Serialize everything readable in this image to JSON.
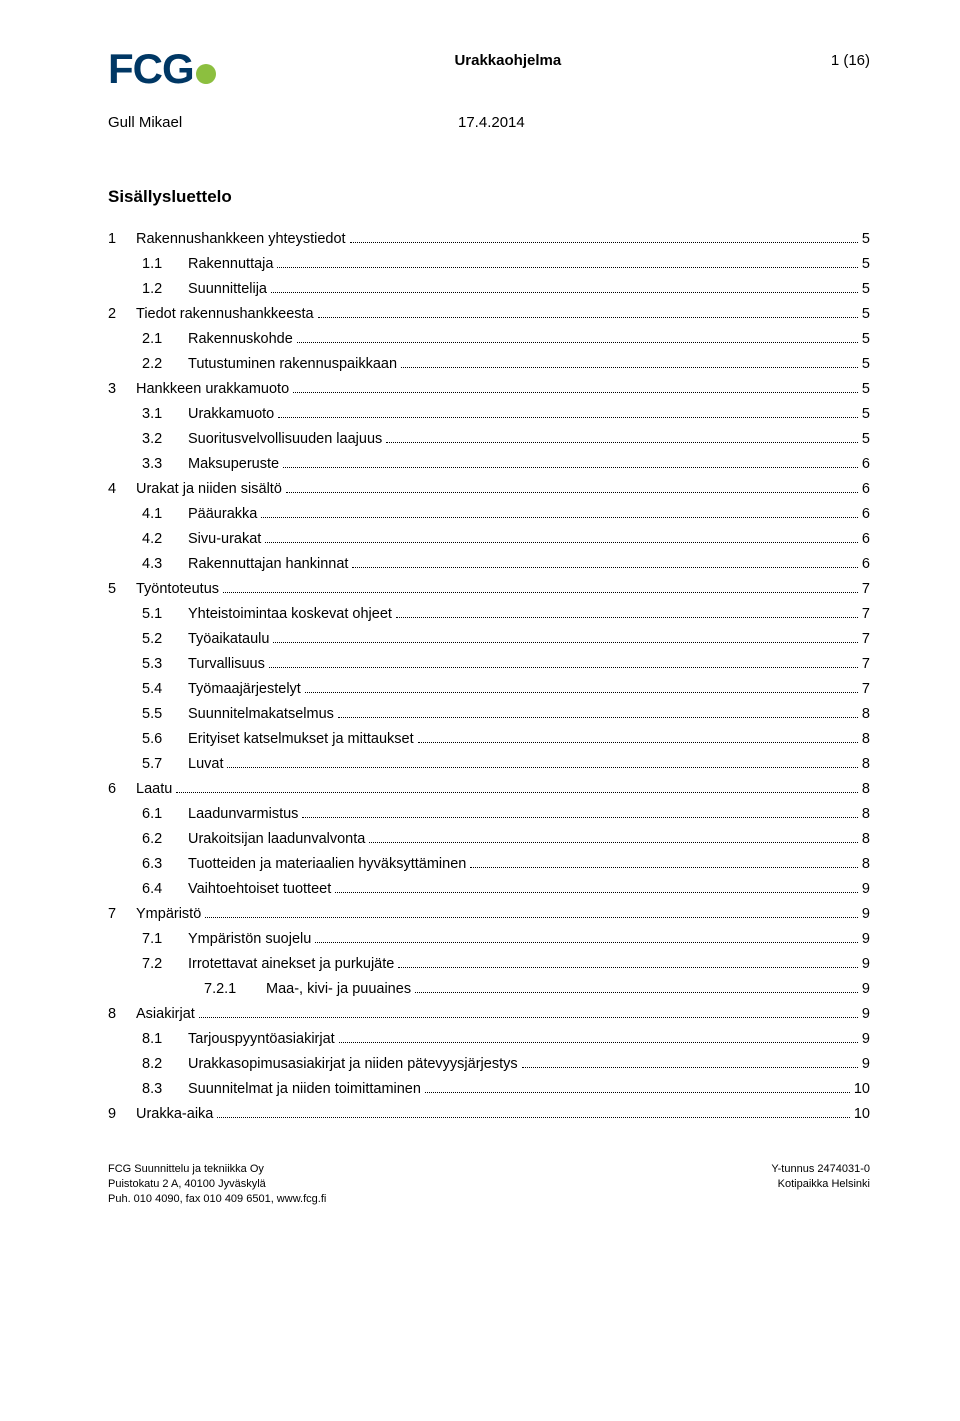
{
  "header": {
    "logo_text": "FCG",
    "doc_title": "Urakkaohjelma",
    "page_indicator": "1 (16)",
    "author": "Gull Mikael",
    "date": "17.4.2014"
  },
  "toc_title": "Sisällysluettelo",
  "toc": [
    {
      "level": 0,
      "num": "1",
      "label": "Rakennushankkeen yhteystiedot",
      "page": "5"
    },
    {
      "level": 1,
      "num": "1.1",
      "label": "Rakennuttaja",
      "page": "5"
    },
    {
      "level": 1,
      "num": "1.2",
      "label": "Suunnittelija",
      "page": "5"
    },
    {
      "level": 0,
      "num": "2",
      "label": "Tiedot rakennushankkeesta",
      "page": "5"
    },
    {
      "level": 1,
      "num": "2.1",
      "label": "Rakennuskohde",
      "page": "5"
    },
    {
      "level": 1,
      "num": "2.2",
      "label": "Tutustuminen rakennuspaikkaan",
      "page": "5"
    },
    {
      "level": 0,
      "num": "3",
      "label": "Hankkeen urakkamuoto",
      "page": "5"
    },
    {
      "level": 1,
      "num": "3.1",
      "label": "Urakkamuoto",
      "page": "5"
    },
    {
      "level": 1,
      "num": "3.2",
      "label": "Suoritusvelvollisuuden laajuus",
      "page": "5"
    },
    {
      "level": 1,
      "num": "3.3",
      "label": "Maksuperuste",
      "page": "6"
    },
    {
      "level": 0,
      "num": "4",
      "label": "Urakat ja niiden sisältö",
      "page": "6"
    },
    {
      "level": 1,
      "num": "4.1",
      "label": "Pääurakka",
      "page": "6"
    },
    {
      "level": 1,
      "num": "4.2",
      "label": "Sivu-urakat",
      "page": "6"
    },
    {
      "level": 1,
      "num": "4.3",
      "label": "Rakennuttajan hankinnat",
      "page": "6"
    },
    {
      "level": 0,
      "num": "5",
      "label": "Työntoteutus",
      "page": "7"
    },
    {
      "level": 1,
      "num": "5.1",
      "label": "Yhteistoimintaa koskevat ohjeet",
      "page": "7"
    },
    {
      "level": 1,
      "num": "5.2",
      "label": "Työaikataulu",
      "page": "7"
    },
    {
      "level": 1,
      "num": "5.3",
      "label": "Turvallisuus",
      "page": "7"
    },
    {
      "level": 1,
      "num": "5.4",
      "label": "Työmaajärjestelyt",
      "page": "7"
    },
    {
      "level": 1,
      "num": "5.5",
      "label": "Suunnitelmakatselmus",
      "page": "8"
    },
    {
      "level": 1,
      "num": "5.6",
      "label": "Erityiset katselmukset ja mittaukset",
      "page": "8"
    },
    {
      "level": 1,
      "num": "5.7",
      "label": "Luvat",
      "page": "8"
    },
    {
      "level": 0,
      "num": "6",
      "label": "Laatu",
      "page": "8"
    },
    {
      "level": 1,
      "num": "6.1",
      "label": "Laadunvarmistus",
      "page": "8"
    },
    {
      "level": 1,
      "num": "6.2",
      "label": "Urakoitsijan laadunvalvonta",
      "page": "8"
    },
    {
      "level": 1,
      "num": "6.3",
      "label": "Tuotteiden ja materiaalien hyväksyttäminen",
      "page": "8"
    },
    {
      "level": 1,
      "num": "6.4",
      "label": "Vaihtoehtoiset tuotteet",
      "page": "9"
    },
    {
      "level": 0,
      "num": "7",
      "label": "Ympäristö",
      "page": "9"
    },
    {
      "level": 1,
      "num": "7.1",
      "label": "Ympäristön suojelu",
      "page": "9"
    },
    {
      "level": 1,
      "num": "7.2",
      "label": "Irrotettavat ainekset ja purkujäte",
      "page": "9"
    },
    {
      "level": 2,
      "num": "7.2.1",
      "label": "Maa-, kivi- ja puuaines",
      "page": "9"
    },
    {
      "level": 0,
      "num": "8",
      "label": "Asiakirjat",
      "page": "9"
    },
    {
      "level": 1,
      "num": "8.1",
      "label": "Tarjouspyyntöasiakirjat",
      "page": "9"
    },
    {
      "level": 1,
      "num": "8.2",
      "label": "Urakkasopimusasiakirjat ja niiden pätevyysjärjestys",
      "page": "9"
    },
    {
      "level": 1,
      "num": "8.3",
      "label": "Suunnitelmat ja niiden toimittaminen",
      "page": "10"
    },
    {
      "level": 0,
      "num": "9",
      "label": "Urakka-aika",
      "page": "10"
    }
  ],
  "footer": {
    "left_line1": "FCG Suunnittelu ja tekniikka Oy",
    "left_line2": "Puistokatu 2 A, 40100 Jyväskylä",
    "left_line3": "Puh. 010 4090, fax 010 409 6501, www.fcg.fi",
    "right_line1": "Y-tunnus 2474031-0",
    "right_line2": "Kotipaikka Helsinki"
  }
}
